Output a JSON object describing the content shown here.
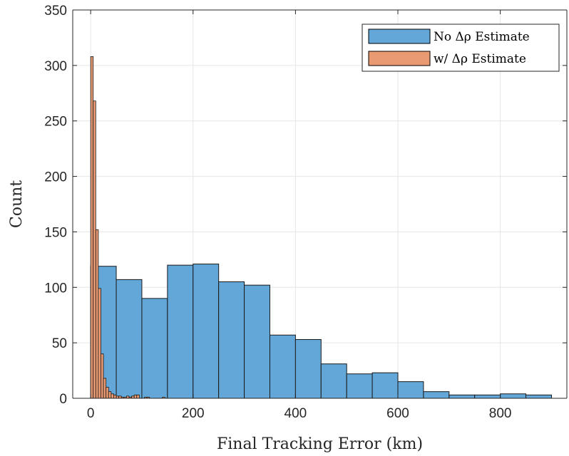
{
  "chart_data": {
    "type": "bar",
    "xlabel": "Final Tracking Error (km)",
    "ylabel": "Count",
    "xlim": [
      -35,
      930
    ],
    "ylim": [
      0,
      350
    ],
    "xticks": [
      0,
      200,
      400,
      600,
      800
    ],
    "yticks": [
      0,
      50,
      100,
      150,
      200,
      250,
      300,
      350
    ],
    "grid": true,
    "legend_position": "top-right",
    "series": [
      {
        "name": "No Δρ Estimate",
        "color": "#62a7d7",
        "bin_edges": [
          0,
          50,
          100,
          150,
          200,
          250,
          300,
          350,
          400,
          450,
          500,
          550,
          600,
          650,
          700,
          750,
          800,
          850,
          900
        ],
        "counts": [
          119,
          107,
          90,
          120,
          121,
          105,
          102,
          57,
          53,
          31,
          22,
          23,
          15,
          6,
          3,
          3,
          4,
          3
        ]
      },
      {
        "name": "w/ Δρ Estimate",
        "color": "#e99a72",
        "bin_edges": [
          0,
          5,
          10,
          15,
          20,
          25,
          30,
          35,
          40,
          45,
          50,
          55,
          60,
          65,
          70,
          75,
          80,
          85,
          90,
          95,
          100,
          105,
          110,
          115,
          120,
          125,
          130,
          135,
          140,
          145,
          150
        ],
        "counts": [
          308,
          268,
          152,
          99,
          40,
          18,
          10,
          6,
          4,
          3,
          2,
          2,
          1,
          1,
          2,
          1,
          2,
          3,
          3,
          0,
          0,
          1,
          1,
          0,
          0,
          0,
          0,
          0,
          1,
          0
        ]
      }
    ]
  }
}
